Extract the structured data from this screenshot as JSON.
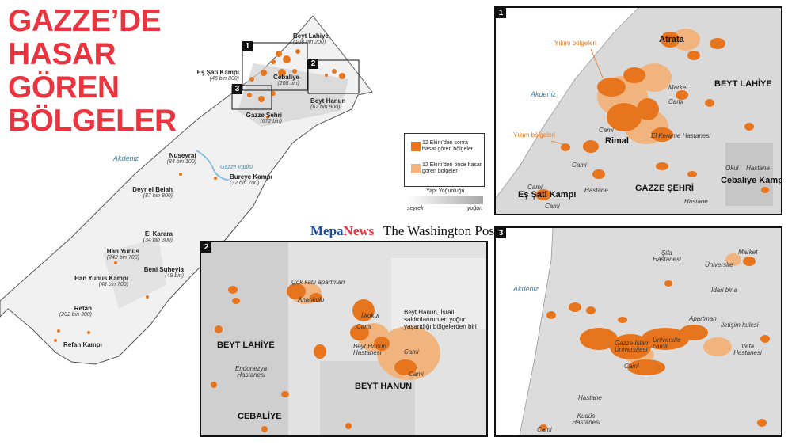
{
  "title_lines": [
    "GAZZE’DE",
    "HASAR",
    "GÖREN",
    "BÖLGELER"
  ],
  "colors": {
    "title": "#e8353f",
    "damage_after": "#e7751e",
    "damage_before": "#f2b47e",
    "mepa_blue": "#1d4ea0"
  },
  "overview": {
    "sea": "Akdeniz",
    "wadi": "Gazze Vadisi",
    "boxes": [
      "1",
      "2",
      "3"
    ],
    "places": [
      {
        "name": "Beyt Lahiye",
        "pop": "(108 bin 200)"
      },
      {
        "name": "Eş Şati Kampı",
        "pop": "(46 bin 800)"
      },
      {
        "name": "Cebaliye",
        "pop": "(208 bin)"
      },
      {
        "name": "Beyt Hanun",
        "pop": "(62 bin 900)"
      },
      {
        "name": "Gazze Şehri",
        "pop": "(672 bin)"
      },
      {
        "name": "Nuseyrat",
        "pop": "(84 bin 100)"
      },
      {
        "name": "Bureyc Kampı",
        "pop": "(32 bin 700)"
      },
      {
        "name": "Deyr el Belah",
        "pop": "(87 bin 800)"
      },
      {
        "name": "El Karara",
        "pop": "(34 bin 300)"
      },
      {
        "name": "Han Yunus",
        "pop": "(242 bin 700)"
      },
      {
        "name": "Beni Suheyla",
        "pop": "(49 bin)"
      },
      {
        "name": "Han Yunus Kampı",
        "pop": "(48 bin 700)"
      },
      {
        "name": "Refah",
        "pop": "(202 bin 300)"
      },
      {
        "name": "Refah Kampı",
        "pop": ""
      }
    ]
  },
  "legend": {
    "after": "12 Ekim’den sonra hasar gören bölgeler",
    "before": "12 Ekim’den önce hasar gören bölgeler",
    "density_title": "Yapı Yoğunluğu",
    "density_low": "seyrek",
    "density_high": "yoğun"
  },
  "brands": {
    "mepa_a": "Mepa",
    "mepa_b": "News",
    "wapo": "The Washington Post"
  },
  "panel1": {
    "num": "1",
    "destruction_1": "Yıkım bölgeleri",
    "destruction_2": "Yıkım bölgeleri",
    "sea": "Akdeniz",
    "cities": [
      "Atrata",
      "BEYT LAHİYE",
      "Rimal",
      "GAZZE ŞEHRİ",
      "Cebaliye Kampı",
      "Eş Şati Kampı"
    ],
    "pois": [
      "Market",
      "Cami",
      "Cami",
      "El Kerame Hastanesi",
      "Cami",
      "Cami",
      "Hastane",
      "Okul",
      "Hastane",
      "Hastane",
      "Cami"
    ]
  },
  "panel2": {
    "num": "2",
    "cities": [
      "BEYT LAHİYE",
      "BEYT HANUN",
      "CEBALİYE"
    ],
    "pois": [
      "Çok katlı apartman",
      "Anaokulu",
      "İlkokul",
      "Cami",
      "Beyt Hanun Hastanesi",
      "Cami",
      "Cami",
      "Endonezya Hastanesi"
    ],
    "annotation": "Beyt Hanun, İsrail saldırılarının en yoğun yaşandığı bölgelerden biri"
  },
  "panel3": {
    "num": "3",
    "sea": "Akdeniz",
    "pois": [
      "Şifa Hastanesi",
      "Üniversite",
      "Market",
      "İdari bina",
      "Apartman",
      "İletişim kulesi",
      "Gazze İslam Üniversitesi",
      "Üniversite camii",
      "Vefa Hastanesi",
      "Cami",
      "Hastane",
      "Kudüs Hastanesi",
      "Cami"
    ]
  }
}
